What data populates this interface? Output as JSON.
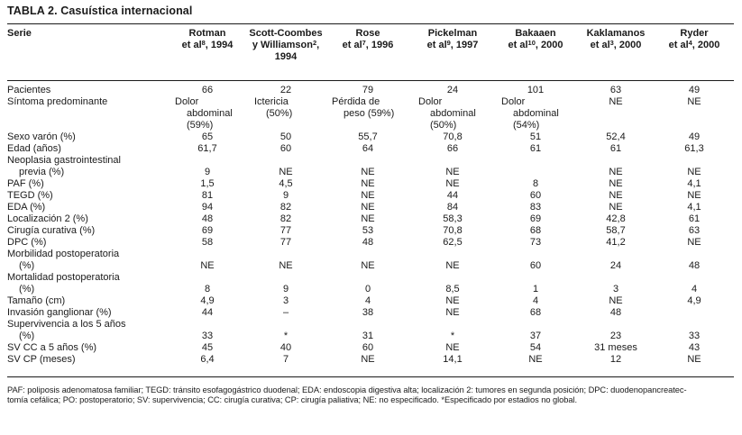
{
  "title": "TABLA 2. Casuística internacional",
  "table": {
    "corner_label": "Serie",
    "columns": [
      {
        "lines": [
          "Rotman",
          "et al^{8}, 1994"
        ]
      },
      {
        "lines": [
          "Scott-Coombes",
          "y Williamson^{2},",
          "1994"
        ]
      },
      {
        "lines": [
          "Rose",
          "et al^{7}, 1996"
        ]
      },
      {
        "lines": [
          "Pickelman",
          "et al^{9}, 1997"
        ]
      },
      {
        "lines": [
          "Bakaaen",
          "et al^{10}, 2000"
        ]
      },
      {
        "lines": [
          "Kaklamanos",
          "et al^{3}, 2000"
        ]
      },
      {
        "lines": [
          "Ryder",
          "et al^{4}, 2000"
        ]
      }
    ],
    "rows": [
      {
        "label": "Pacientes",
        "values": [
          "66",
          "22",
          "79",
          "24",
          "101",
          "63",
          "49"
        ]
      },
      {
        "label": "Síntoma predominante",
        "values": [
          "Dolor\nabdominal\n(59%)",
          "Ictericia\n(50%)",
          "Pérdida de\npeso (59%)",
          "Dolor\nabdominal\n(50%)",
          "Dolor\nabdominal\n(54%)",
          "NE",
          "NE"
        ]
      },
      {
        "label": "Sexo varón (%)",
        "values": [
          "65",
          "50",
          "55,7",
          "70,8",
          "51",
          "52,4",
          "49"
        ]
      },
      {
        "label": "Edad (años)",
        "values": [
          "61,7",
          "60",
          "64",
          "66",
          "61",
          "61",
          "61,3"
        ]
      },
      {
        "label": "Neoplasia gastrointestinal\nprevia (%)",
        "values": [
          "9",
          "NE",
          "NE",
          "NE",
          "",
          "NE",
          "NE"
        ]
      },
      {
        "label": "PAF (%)",
        "values": [
          "1,5",
          "4,5",
          "NE",
          "NE",
          "8",
          "NE",
          "4,1"
        ]
      },
      {
        "label": "TEGD (%)",
        "values": [
          "81",
          "9",
          "NE",
          "44",
          "60",
          "NE",
          "NE"
        ]
      },
      {
        "label": "EDA (%)",
        "values": [
          "94",
          "82",
          "NE",
          "84",
          "83",
          "NE",
          "4,1"
        ]
      },
      {
        "label": "Localización 2 (%)",
        "values": [
          "48",
          "82",
          "NE",
          "58,3",
          "69",
          "42,8",
          "61"
        ]
      },
      {
        "label": "Cirugía curativa (%)",
        "values": [
          "69",
          "77",
          "53",
          "70,8",
          "68",
          "58,7",
          "63"
        ]
      },
      {
        "label": "DPC (%)",
        "values": [
          "58",
          "77",
          "48",
          "62,5",
          "73",
          "41,2",
          "NE"
        ]
      },
      {
        "label": "Morbilidad postoperatoria\n(%)",
        "values": [
          "NE",
          "NE",
          "NE",
          "NE",
          "60",
          "24",
          "48"
        ]
      },
      {
        "label": "Mortalidad postoperatoria\n(%)",
        "values": [
          "8",
          "9",
          "0",
          "8,5",
          "1",
          "3",
          "4"
        ]
      },
      {
        "label": "Tamaño (cm)",
        "values": [
          "4,9",
          "3",
          "4",
          "NE",
          "4",
          "NE",
          "4,9"
        ]
      },
      {
        "label": "Invasión ganglionar (%)",
        "values": [
          "44",
          "–",
          "38",
          "NE",
          "68",
          "48",
          ""
        ]
      },
      {
        "label": "Supervivencia a los 5 años\n(%)",
        "values": [
          "33",
          "*",
          "31",
          "*",
          "37",
          "23",
          "33"
        ]
      },
      {
        "label": "SV CC a 5 años (%)",
        "values": [
          "45",
          "40",
          "60",
          "NE",
          "54",
          "31 meses",
          "43"
        ]
      },
      {
        "label": "SV CP (meses)",
        "values": [
          "6,4",
          "7",
          "NE",
          "14,1",
          "NE",
          "12",
          "NE"
        ]
      }
    ]
  },
  "footnote": {
    "lines": [
      "PAF: poliposis adenomatosa familiar; TEGD: tránsito esofagogástrico duodenal; EDA: endoscopia digestiva alta; localización 2: tumores en segunda posición; DPC: duodenopancreatec-",
      "tomía cefálica; PO: postoperatorio; SV: supervivencia; CC: cirugía curativa; CP: cirugía paliativa; NE: no especificado. *Especificado por estadios no global."
    ]
  }
}
